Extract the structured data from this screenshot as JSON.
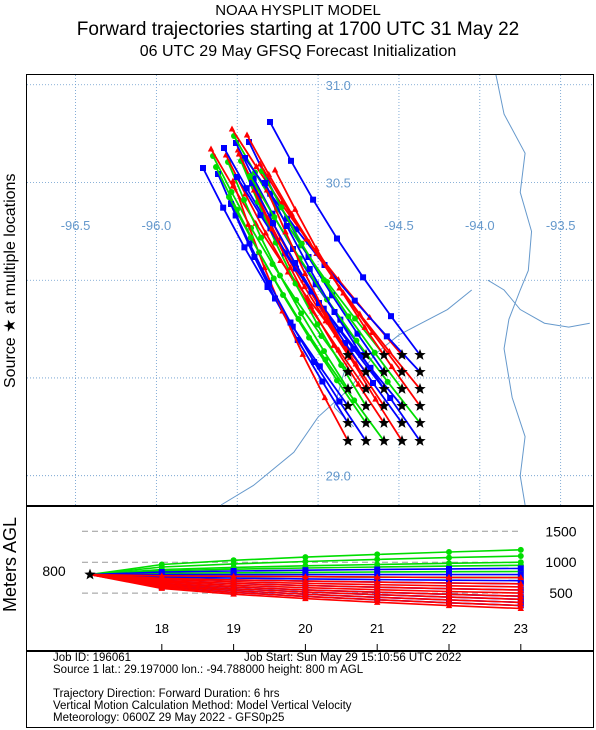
{
  "header": {
    "model": "NOAA HYSPLIT MODEL",
    "title": "Forward trajectories starting at 1700 UTC 31 May 22",
    "subtitle": "06 UTC 29 May    GFSQ  Forecast Initialization"
  },
  "map": {
    "side_label": "Source ★  at multiple locations",
    "lon_labels": [
      "-96.5",
      "-96.0",
      "-94.5",
      "-94.0",
      "-93.5"
    ],
    "lat_labels": [
      "31.0",
      "30.5",
      "29.0"
    ]
  },
  "profile": {
    "ylabel": "Meters AGL",
    "start_label": "800",
    "height_ticks": [
      "1500",
      "1000",
      "500"
    ],
    "time_ticks": [
      "18",
      "19",
      "20",
      "21",
      "22",
      "23"
    ]
  },
  "info": {
    "job_id": "Job ID: 196061",
    "job_start": "Job Start: Sun May 29 15:10:56 UTC 2022",
    "source": "Source 1       lat.: 29.197000      lon.: -94.788000      height: 800 m AGL",
    "direction": "Trajectory Direction: Forward       Duration: 6 hrs",
    "vertical": "Vertical Motion Calculation Method:       Model Vertical Velocity",
    "meteorology": "Meteorology: 0600Z 29 May 2022 - GFS0p25"
  },
  "colors": {
    "red": "#ff0000",
    "blue": "#0000ff",
    "green": "#00dd00",
    "map_lines": "#6699cc",
    "grid_labels": "#6699cc"
  },
  "chart_data": {
    "type": "line",
    "title": "Forward trajectories starting at 1700 UTC 31 May 22",
    "xlabel": "",
    "ylabel": "Meters AGL",
    "x": [
      17,
      18,
      19,
      20,
      21,
      22,
      23
    ],
    "ylim": [
      0,
      1800
    ],
    "start_height_m": 800,
    "series_groups": [
      {
        "color": "green",
        "final_heights_m": [
          1200,
          1100,
          1000,
          950,
          850,
          750
        ]
      },
      {
        "color": "blue",
        "final_heights_m": [
          900,
          800,
          700,
          650,
          550,
          450,
          400,
          350,
          300
        ]
      },
      {
        "color": "red",
        "final_heights_m": [
          750,
          650,
          600,
          550,
          500,
          450,
          400,
          350,
          300,
          250
        ]
      }
    ],
    "map_extent": {
      "lon": [
        -96.8,
        -93.3
      ],
      "lat": [
        28.85,
        31.05
      ]
    },
    "grid": true
  }
}
